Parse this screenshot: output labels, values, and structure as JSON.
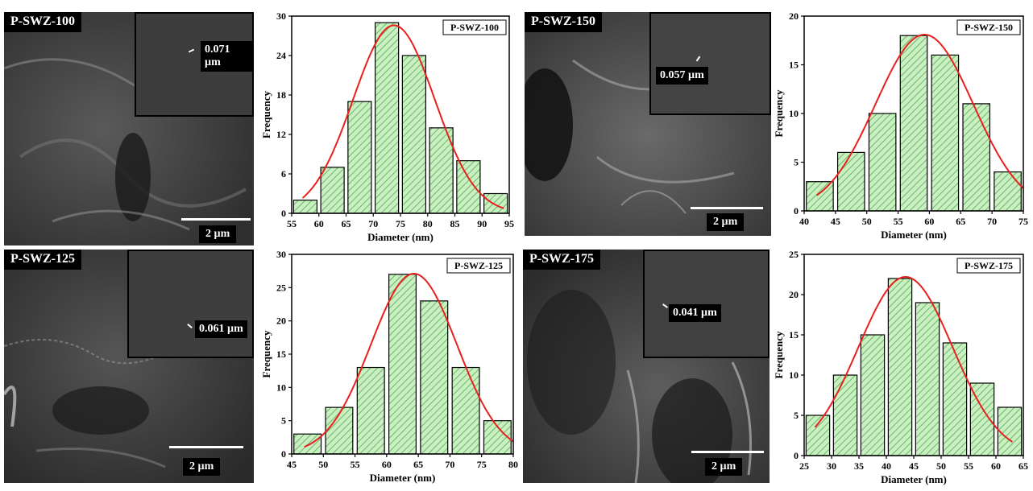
{
  "sem_images": [
    {
      "label": "P-SWZ-100",
      "inset_measure": "0.071 µm",
      "scale": "2 µm"
    },
    {
      "label": "P-SWZ-150",
      "inset_measure": "0.057 µm",
      "scale": "2 µm"
    },
    {
      "label": "P-SWZ-125",
      "inset_measure": "0.061 µm",
      "scale": "2 µm"
    },
    {
      "label": "P-SWZ-175",
      "inset_measure": "0.041 µm",
      "scale": "2 µm"
    }
  ],
  "colors": {
    "bar_fill": "#c8f0c0",
    "hatch": "#5aa55a",
    "fit_curve": "#e8201e",
    "bar_edge": "#000000"
  },
  "chart_data": [
    {
      "type": "bar",
      "legend": "P-SWZ-100",
      "xlabel": "Diameter (nm)",
      "ylabel": "Frequency",
      "xlim": [
        55,
        95
      ],
      "ylim": [
        0,
        30
      ],
      "xticks": [
        55,
        60,
        65,
        70,
        75,
        80,
        85,
        90,
        95
      ],
      "yticks": [
        0,
        6,
        12,
        18,
        24,
        30
      ],
      "bin_width": 5,
      "bin_centers": [
        57.5,
        62.5,
        67.5,
        72.5,
        77.5,
        82.5,
        87.5,
        92.5
      ],
      "values": [
        2,
        7,
        17,
        29,
        24,
        13,
        8,
        3
      ],
      "fit": {
        "type": "gaussian",
        "mean": 73.8,
        "sd": 7.5,
        "peak": 28.6,
        "xrange": [
          57,
          94
        ]
      }
    },
    {
      "type": "bar",
      "legend": "P-SWZ-150",
      "xlabel": "Diameter (nm)",
      "ylabel": "Frequency",
      "xlim": [
        40,
        75
      ],
      "ylim": [
        0,
        20
      ],
      "xticks": [
        40,
        45,
        50,
        55,
        60,
        65,
        70,
        75
      ],
      "yticks": [
        0,
        5,
        10,
        15,
        20
      ],
      "bin_width": 5,
      "bin_centers": [
        42.5,
        47.5,
        52.5,
        57.5,
        62.5,
        67.5,
        72.5
      ],
      "values": [
        3,
        6,
        10,
        18,
        16,
        11,
        4
      ],
      "fit": {
        "type": "gaussian",
        "mean": 59.2,
        "sd": 7.8,
        "peak": 18.1,
        "xrange": [
          42,
          75
        ]
      }
    },
    {
      "type": "bar",
      "legend": "P-SWZ-125",
      "xlabel": "Diameter (nm)",
      "ylabel": "Frequency",
      "xlim": [
        45,
        80
      ],
      "ylim": [
        0,
        30
      ],
      "xticks": [
        45,
        50,
        55,
        60,
        65,
        70,
        75,
        80
      ],
      "yticks": [
        0,
        5,
        10,
        15,
        20,
        25,
        30
      ],
      "bin_width": 5,
      "bin_centers": [
        47.5,
        52.5,
        57.5,
        62.5,
        67.5,
        72.5,
        77.5
      ],
      "values": [
        3,
        7,
        13,
        27,
        23,
        13,
        5
      ],
      "fit": {
        "type": "gaussian",
        "mean": 64.3,
        "sd": 6.8,
        "peak": 27.1,
        "xrange": [
          47,
          80
        ]
      }
    },
    {
      "type": "bar",
      "legend": "P-SWZ-175",
      "xlabel": "Diameter (nm)",
      "ylabel": "Frequency",
      "xlim": [
        25,
        65
      ],
      "ylim": [
        0,
        25
      ],
      "xticks": [
        25,
        30,
        35,
        40,
        45,
        50,
        55,
        60,
        65
      ],
      "yticks": [
        0,
        5,
        10,
        15,
        20,
        25
      ],
      "bin_width": 5,
      "bin_centers": [
        27.5,
        32.5,
        37.5,
        42.5,
        47.5,
        52.5,
        57.5,
        62.5
      ],
      "values": [
        5,
        10,
        15,
        22,
        19,
        14,
        9,
        6
      ],
      "fit": {
        "type": "gaussian",
        "mean": 43.5,
        "sd": 8.6,
        "peak": 22.2,
        "xrange": [
          27,
          63
        ]
      }
    }
  ]
}
